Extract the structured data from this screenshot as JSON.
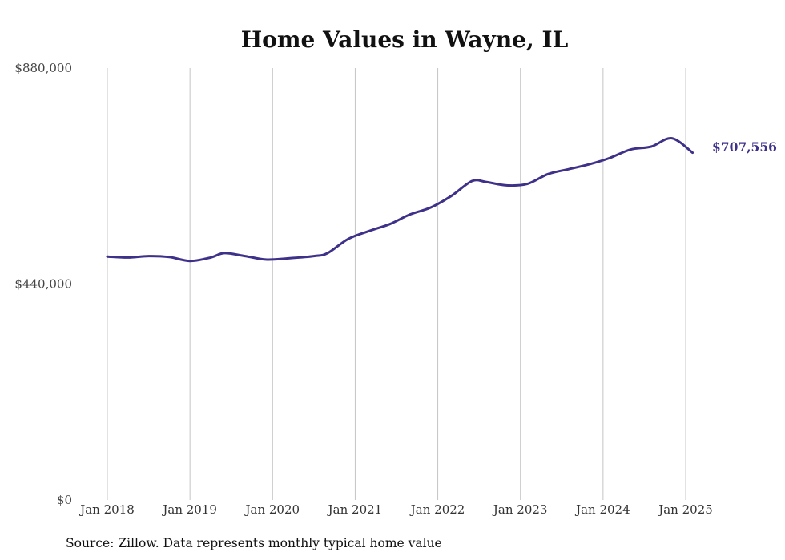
{
  "chart_data": {
    "type": "line",
    "title": "Home Values in Wayne, IL",
    "xlabel": "",
    "ylabel": "",
    "ylim": [
      0,
      880000
    ],
    "yticks": [
      0,
      440000,
      880000
    ],
    "ytick_labels": [
      "$0",
      "$440,000",
      "$880,000"
    ],
    "xticks": [
      "2018-01",
      "2019-01",
      "2020-01",
      "2021-01",
      "2022-01",
      "2023-01",
      "2024-01",
      "2025-01"
    ],
    "xtick_labels": [
      "Jan 2018",
      "Jan 2019",
      "Jan 2020",
      "Jan 2021",
      "Jan 2022",
      "Jan 2023",
      "Jan 2024",
      "Jan 2025"
    ],
    "grid": "vertical",
    "series": [
      {
        "color": "#3d3189",
        "points": [
          [
            "2018-01",
            496000
          ],
          [
            "2018-04",
            494000
          ],
          [
            "2018-07",
            497000
          ],
          [
            "2018-10",
            495000
          ],
          [
            "2019-01",
            487000
          ],
          [
            "2019-04",
            494000
          ],
          [
            "2019-06",
            503000
          ],
          [
            "2019-09",
            497000
          ],
          [
            "2019-12",
            490000
          ],
          [
            "2020-03",
            492000
          ],
          [
            "2020-07",
            497000
          ],
          [
            "2020-09",
            503000
          ],
          [
            "2020-12",
            532000
          ],
          [
            "2021-03",
            548000
          ],
          [
            "2021-06",
            562000
          ],
          [
            "2021-09",
            582000
          ],
          [
            "2021-12",
            596000
          ],
          [
            "2022-03",
            620000
          ],
          [
            "2022-06",
            650000
          ],
          [
            "2022-08",
            648000
          ],
          [
            "2022-11",
            641000
          ],
          [
            "2023-02",
            644000
          ],
          [
            "2023-05",
            664000
          ],
          [
            "2023-08",
            674000
          ],
          [
            "2023-11",
            684000
          ],
          [
            "2024-02",
            697000
          ],
          [
            "2024-05",
            714000
          ],
          [
            "2024-08",
            720000
          ],
          [
            "2024-11",
            737000
          ],
          [
            "2025-02",
            707556
          ]
        ]
      }
    ],
    "end_label": "$707,556",
    "source": "Source: Zillow. Data represents monthly typical home value"
  },
  "colors": {
    "line": "#3d3189",
    "grid": "#c4c4c4",
    "text": "#111111"
  }
}
